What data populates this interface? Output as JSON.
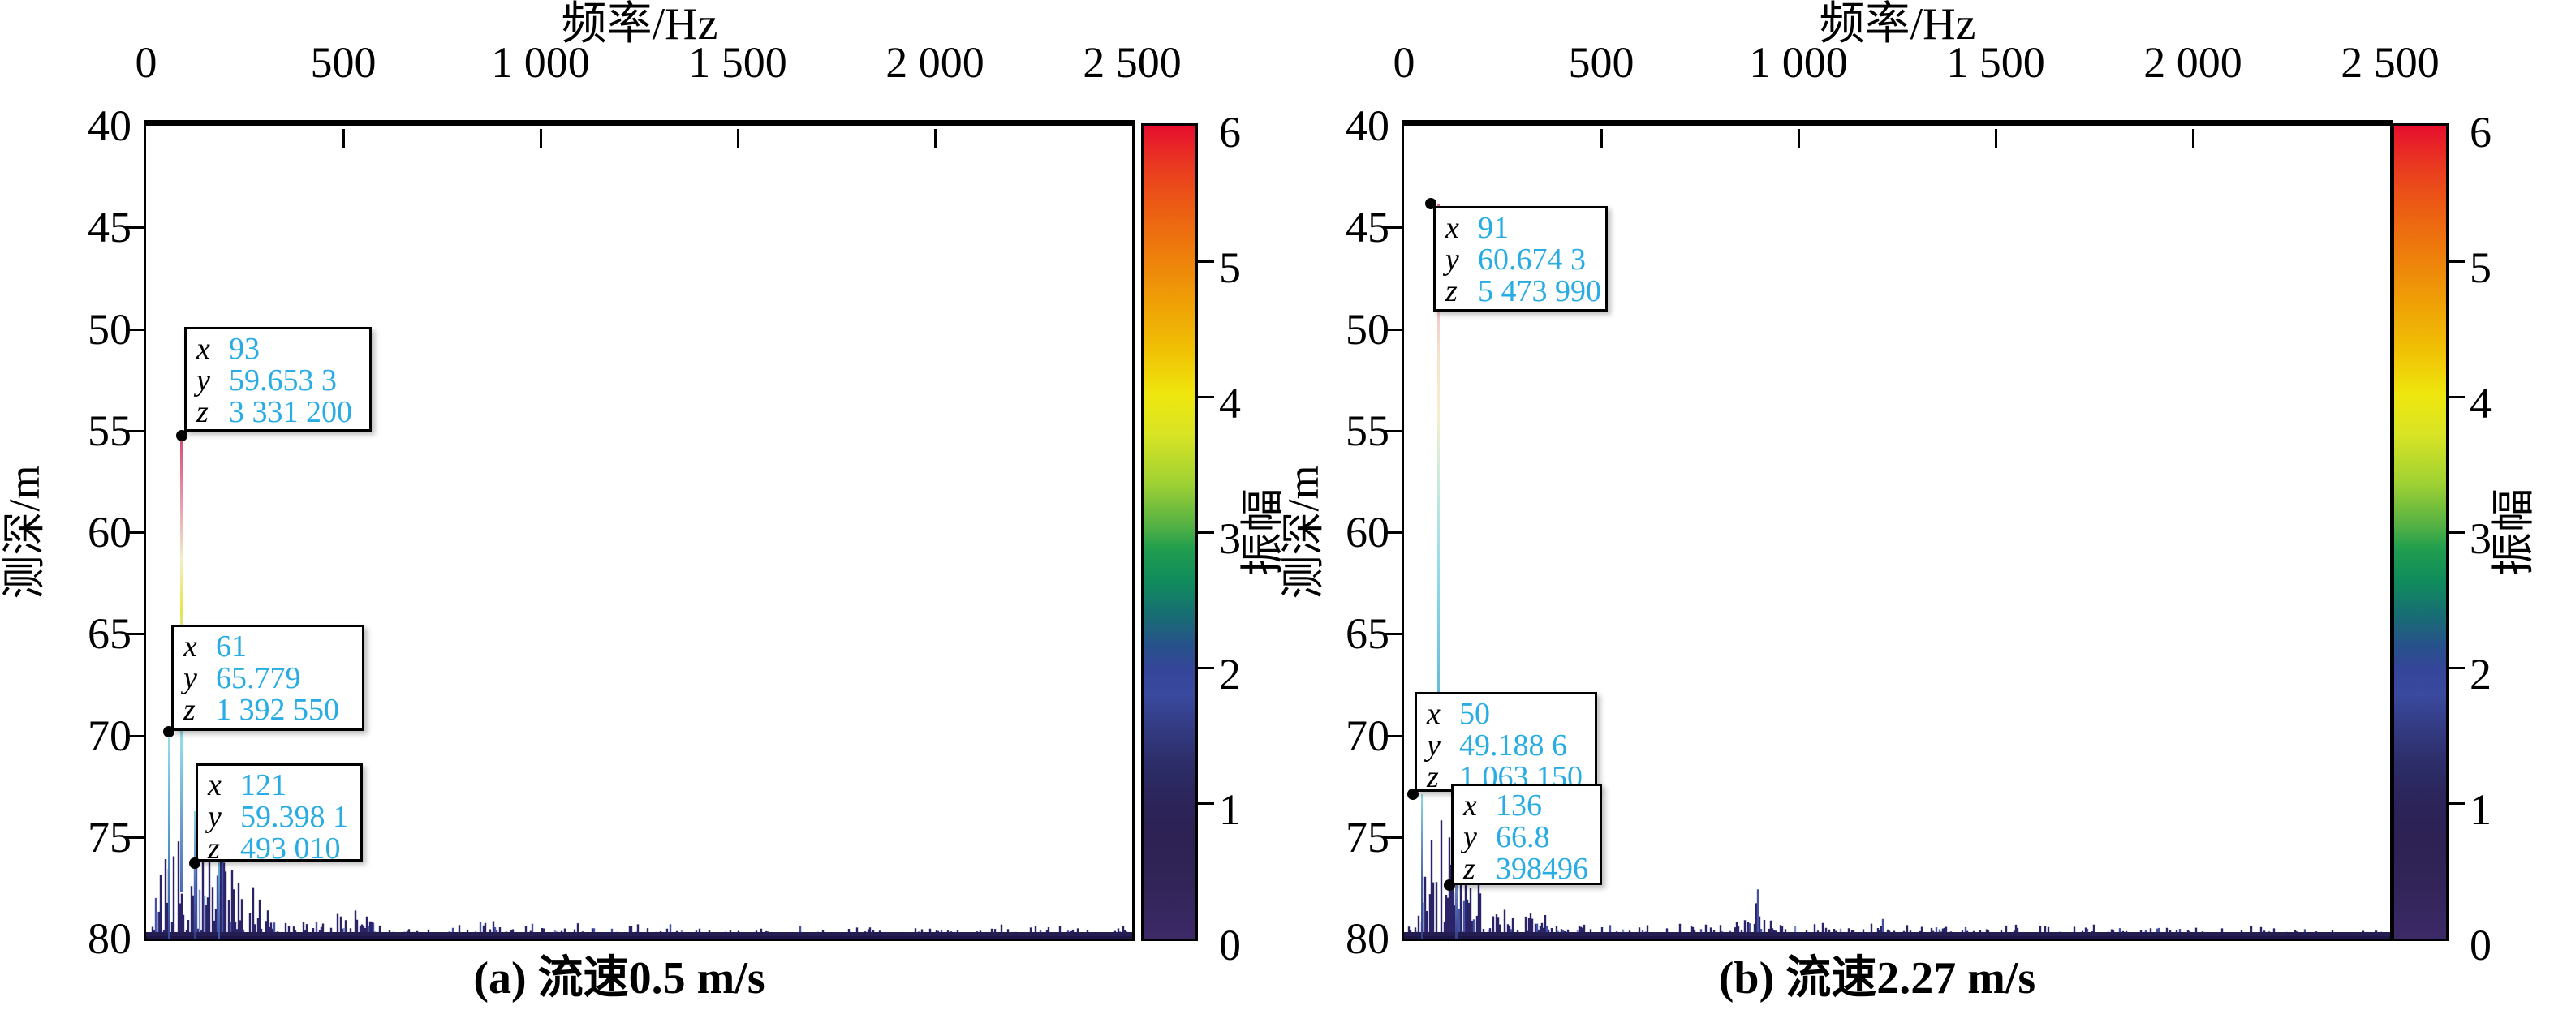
{
  "panels": [
    {
      "id": "a",
      "axis_title": "频率/Hz",
      "x_ticks": [
        "0",
        "500",
        "1 000",
        "1 500",
        "2 000",
        "2 500"
      ],
      "y_label": "测深/m",
      "y_ticks": [
        "40",
        "45",
        "50",
        "55",
        "60",
        "65",
        "70",
        "75",
        "80"
      ],
      "colorbar": {
        "label": "振幅",
        "tick_labels": [
          "6",
          "5",
          "4",
          "3",
          "2",
          "1",
          "0"
        ]
      },
      "caption": "(a) 流速0.5 m/s",
      "datatips": [
        {
          "keys": [
            "x",
            "y",
            "z"
          ],
          "values": [
            "93",
            "59.653 3",
            "3 331 200"
          ]
        },
        {
          "keys": [
            "x",
            "y",
            "z"
          ],
          "values": [
            "61",
            "65.779",
            "1 392 550"
          ]
        },
        {
          "keys": [
            "x",
            "y",
            "z"
          ],
          "values": [
            "121",
            "59.398 1",
            "493 010"
          ]
        }
      ]
    },
    {
      "id": "b",
      "axis_title": "频率/Hz",
      "x_ticks": [
        "0",
        "500",
        "1 000",
        "1 500",
        "2 000",
        "2 500"
      ],
      "y_label": "测深/m",
      "y_ticks": [
        "40",
        "45",
        "50",
        "55",
        "60",
        "65",
        "70",
        "75",
        "80"
      ],
      "colorbar": {
        "label": "振幅",
        "tick_labels": [
          "6",
          "5",
          "4",
          "3",
          "2",
          "1",
          "0"
        ]
      },
      "caption": "(b) 流速2.27 m/s",
      "datatips": [
        {
          "keys": [
            "x",
            "y",
            "z"
          ],
          "values": [
            "91",
            "60.674 3",
            "5 473 990"
          ]
        },
        {
          "keys": [
            "x",
            "y",
            "z"
          ],
          "values": [
            "50",
            "49.188 6",
            "1 063 150"
          ]
        },
        {
          "keys": [
            "x",
            "y",
            "z"
          ],
          "values": [
            "136",
            "66.8",
            "398496"
          ]
        }
      ]
    }
  ],
  "colors": {
    "datatip_value": "#29ace3",
    "spike_base": "#2b2368",
    "spike_light": "#4553a6",
    "spike_pale": "#7e8fce",
    "floor": "#241d52",
    "floor_dark": "#1d1747",
    "frame": "#000000"
  },
  "colorbar_gradient": [
    [
      0,
      "#e60e2e"
    ],
    [
      5,
      "#e93a20"
    ],
    [
      10,
      "#ec5c14"
    ],
    [
      16,
      "#ee7f0c"
    ],
    [
      22,
      "#efa106"
    ],
    [
      28,
      "#f0c305"
    ],
    [
      33,
      "#efe60e"
    ],
    [
      38,
      "#d8e424"
    ],
    [
      44,
      "#9fd133"
    ],
    [
      49,
      "#57b243"
    ],
    [
      52,
      "#219e4e"
    ],
    [
      56,
      "#108c5c"
    ],
    [
      60,
      "#176f72"
    ],
    [
      64,
      "#27518b"
    ],
    [
      67,
      "#35459a"
    ],
    [
      70,
      "#3a4a9f"
    ],
    [
      74,
      "#333b83"
    ],
    [
      78,
      "#2d2f6b"
    ],
    [
      82,
      "#2b265c"
    ],
    [
      86,
      "#2d2255"
    ],
    [
      92,
      "#302355"
    ],
    [
      100,
      "#3c2a67"
    ]
  ],
  "chart_data": [
    {
      "type": "heatmap",
      "panel": "a",
      "caption": "(a) 流速0.5 m/s",
      "flow_velocity_mps": 0.5,
      "xlabel": "频率/Hz",
      "ylabel": "测深/m",
      "xlim": [
        0,
        2500
      ],
      "ylim_depth": [
        40,
        80
      ],
      "y_axis_reversed": true,
      "colorbar_label": "振幅",
      "colorbar_range": [
        0,
        6
      ],
      "annotated_peaks": [
        {
          "x_hz": 93,
          "y": 59.6533,
          "z_amplitude": 3331200,
          "marker_depth_m": 55.3
        },
        {
          "x_hz": 61,
          "y": 65.779,
          "z_amplitude": 1392550,
          "marker_depth_m": 69.8
        },
        {
          "x_hz": 121,
          "y": 59.3981,
          "z_amplitude": 493010,
          "marker_depth_m": 76.3
        }
      ],
      "noise_envelope_hz_m": [
        [
          0,
          0.4
        ],
        [
          20,
          1.5
        ],
        [
          35,
          4.0
        ],
        [
          50,
          6.5
        ],
        [
          65,
          7.5
        ],
        [
          80,
          6.8
        ],
        [
          95,
          7.2
        ],
        [
          110,
          6.5
        ],
        [
          130,
          6.8
        ],
        [
          150,
          6.0
        ],
        [
          170,
          6.3
        ],
        [
          190,
          5.2
        ],
        [
          210,
          4.6
        ],
        [
          230,
          4.0
        ],
        [
          255,
          3.2
        ],
        [
          280,
          2.4
        ],
        [
          310,
          1.9
        ],
        [
          340,
          1.5
        ],
        [
          380,
          1.2
        ],
        [
          420,
          1.0
        ],
        [
          460,
          1.1
        ],
        [
          500,
          1.7
        ],
        [
          530,
          2.3
        ],
        [
          560,
          1.5
        ],
        [
          600,
          1.0
        ],
        [
          650,
          0.8
        ],
        [
          700,
          0.75
        ],
        [
          760,
          0.8
        ],
        [
          820,
          0.8
        ],
        [
          860,
          1.0
        ],
        [
          890,
          1.7
        ],
        [
          910,
          1.3
        ],
        [
          940,
          0.9
        ],
        [
          1000,
          0.8
        ],
        [
          1060,
          0.75
        ],
        [
          1120,
          0.8
        ],
        [
          1180,
          0.85
        ],
        [
          1240,
          1.0
        ],
        [
          1300,
          0.8
        ],
        [
          1360,
          0.7
        ],
        [
          1420,
          0.65
        ],
        [
          1480,
          0.7
        ],
        [
          1550,
          0.75
        ],
        [
          1620,
          0.65
        ],
        [
          1700,
          0.7
        ],
        [
          1760,
          0.85
        ],
        [
          1820,
          0.7
        ],
        [
          1900,
          0.65
        ],
        [
          1980,
          0.7
        ],
        [
          2060,
          0.65
        ],
        [
          2140,
          0.7
        ],
        [
          2220,
          0.8
        ],
        [
          2300,
          0.7
        ],
        [
          2380,
          0.6
        ],
        [
          2460,
          0.65
        ],
        [
          2500,
          0.6
        ]
      ]
    },
    {
      "type": "heatmap",
      "panel": "b",
      "caption": "(b) 流速2.27 m/s",
      "flow_velocity_mps": 2.27,
      "xlabel": "频率/Hz",
      "ylabel": "测深/m",
      "xlim": [
        0,
        2500
      ],
      "ylim_depth": [
        40,
        80
      ],
      "y_axis_reversed": true,
      "colorbar_label": "振幅",
      "colorbar_range": [
        0,
        6
      ],
      "annotated_peaks": [
        {
          "x_hz": 91,
          "y": 60.6743,
          "z_amplitude": 5473990,
          "marker_depth_m": 43.9
        },
        {
          "x_hz": 50,
          "y": 49.1886,
          "z_amplitude": 1063150,
          "marker_depth_m": 72.9
        },
        {
          "x_hz": 136,
          "y": 66.8,
          "z_amplitude": 398496,
          "marker_depth_m": 77.4
        }
      ],
      "noise_envelope_hz_m": [
        [
          0,
          0.4
        ],
        [
          20,
          1.2
        ],
        [
          35,
          3.5
        ],
        [
          50,
          6.0
        ],
        [
          65,
          7.5
        ],
        [
          80,
          7.0
        ],
        [
          95,
          6.5
        ],
        [
          115,
          6.8
        ],
        [
          135,
          5.8
        ],
        [
          160,
          5.0
        ],
        [
          185,
          4.2
        ],
        [
          210,
          3.4
        ],
        [
          240,
          2.6
        ],
        [
          270,
          2.1
        ],
        [
          300,
          1.8
        ],
        [
          340,
          1.5
        ],
        [
          380,
          1.3
        ],
        [
          420,
          1.1
        ],
        [
          470,
          0.95
        ],
        [
          520,
          0.85
        ],
        [
          570,
          0.8
        ],
        [
          620,
          0.85
        ],
        [
          680,
          0.8
        ],
        [
          740,
          0.85
        ],
        [
          800,
          0.95
        ],
        [
          850,
          1.3
        ],
        [
          880,
          2.2
        ],
        [
          900,
          3.1
        ],
        [
          915,
          2.2
        ],
        [
          935,
          1.4
        ],
        [
          970,
          1.1
        ],
        [
          1010,
          1.0
        ],
        [
          1060,
          1.05
        ],
        [
          1110,
          1.0
        ],
        [
          1160,
          0.95
        ],
        [
          1210,
          1.0
        ],
        [
          1260,
          0.9
        ],
        [
          1320,
          0.85
        ],
        [
          1380,
          0.9
        ],
        [
          1440,
          0.8
        ],
        [
          1500,
          0.85
        ],
        [
          1570,
          0.75
        ],
        [
          1640,
          0.8
        ],
        [
          1710,
          0.75
        ],
        [
          1780,
          0.7
        ],
        [
          1850,
          0.7
        ],
        [
          1920,
          0.65
        ],
        [
          2000,
          0.7
        ],
        [
          2080,
          0.6
        ],
        [
          2160,
          0.65
        ],
        [
          2240,
          0.6
        ],
        [
          2320,
          0.6
        ],
        [
          2400,
          0.55
        ],
        [
          2500,
          0.6
        ]
      ]
    }
  ]
}
